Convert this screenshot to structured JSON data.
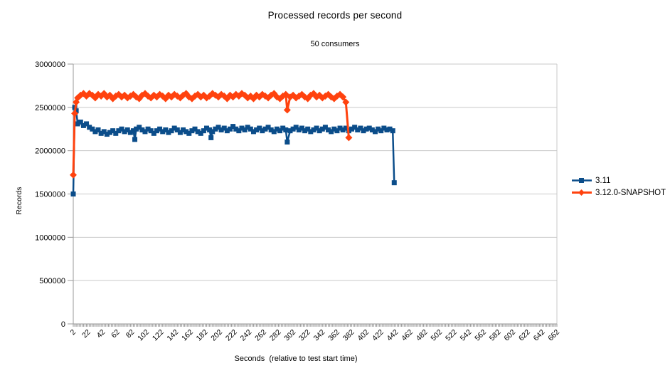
{
  "chart_data": {
    "type": "line",
    "title": "Processed records per second",
    "subtitle": "50 consumers",
    "xlabel": "Seconds  (relative to test start time)",
    "ylabel": "Records",
    "x_axis": {
      "first_label": 2,
      "label_step": 20,
      "last_label": 662,
      "minor_tick_step": 2
    },
    "y_axis": {
      "min": 0,
      "max": 3000000,
      "tick_step": 500000
    },
    "grid": "horizontal",
    "legend_position": "right",
    "colors": {
      "grid": "#c9c9c9",
      "axis": "#9a9a9a",
      "text": "#000000",
      "background": "#ffffff"
    },
    "series": [
      {
        "name": "3.11",
        "color": "#0b4d8a",
        "marker": "square",
        "line_width": 2.5,
        "points": [
          [
            2,
            1500000
          ],
          [
            4,
            2500000
          ],
          [
            6,
            2460000
          ],
          [
            8,
            2310000
          ],
          [
            12,
            2330000
          ],
          [
            16,
            2290000
          ],
          [
            20,
            2310000
          ],
          [
            24,
            2270000
          ],
          [
            28,
            2250000
          ],
          [
            32,
            2220000
          ],
          [
            36,
            2240000
          ],
          [
            40,
            2200000
          ],
          [
            44,
            2220000
          ],
          [
            48,
            2190000
          ],
          [
            52,
            2210000
          ],
          [
            56,
            2230000
          ],
          [
            60,
            2200000
          ],
          [
            64,
            2230000
          ],
          [
            68,
            2250000
          ],
          [
            72,
            2220000
          ],
          [
            76,
            2240000
          ],
          [
            80,
            2210000
          ],
          [
            84,
            2230000
          ],
          [
            86,
            2130000
          ],
          [
            88,
            2250000
          ],
          [
            92,
            2270000
          ],
          [
            96,
            2240000
          ],
          [
            100,
            2220000
          ],
          [
            104,
            2250000
          ],
          [
            108,
            2230000
          ],
          [
            112,
            2200000
          ],
          [
            116,
            2230000
          ],
          [
            120,
            2250000
          ],
          [
            124,
            2220000
          ],
          [
            128,
            2240000
          ],
          [
            132,
            2210000
          ],
          [
            136,
            2230000
          ],
          [
            140,
            2260000
          ],
          [
            144,
            2240000
          ],
          [
            148,
            2210000
          ],
          [
            152,
            2240000
          ],
          [
            156,
            2220000
          ],
          [
            160,
            2200000
          ],
          [
            164,
            2230000
          ],
          [
            168,
            2250000
          ],
          [
            172,
            2220000
          ],
          [
            176,
            2200000
          ],
          [
            180,
            2230000
          ],
          [
            184,
            2260000
          ],
          [
            188,
            2240000
          ],
          [
            190,
            2150000
          ],
          [
            192,
            2220000
          ],
          [
            196,
            2250000
          ],
          [
            200,
            2270000
          ],
          [
            204,
            2240000
          ],
          [
            208,
            2260000
          ],
          [
            212,
            2230000
          ],
          [
            216,
            2250000
          ],
          [
            220,
            2280000
          ],
          [
            224,
            2250000
          ],
          [
            228,
            2230000
          ],
          [
            232,
            2260000
          ],
          [
            236,
            2240000
          ],
          [
            240,
            2270000
          ],
          [
            244,
            2250000
          ],
          [
            248,
            2220000
          ],
          [
            252,
            2240000
          ],
          [
            256,
            2260000
          ],
          [
            260,
            2230000
          ],
          [
            264,
            2250000
          ],
          [
            268,
            2270000
          ],
          [
            272,
            2240000
          ],
          [
            276,
            2220000
          ],
          [
            280,
            2250000
          ],
          [
            284,
            2230000
          ],
          [
            288,
            2260000
          ],
          [
            292,
            2240000
          ],
          [
            294,
            2100000
          ],
          [
            298,
            2230000
          ],
          [
            302,
            2250000
          ],
          [
            306,
            2270000
          ],
          [
            310,
            2240000
          ],
          [
            314,
            2260000
          ],
          [
            318,
            2230000
          ],
          [
            322,
            2250000
          ],
          [
            326,
            2220000
          ],
          [
            330,
            2240000
          ],
          [
            334,
            2260000
          ],
          [
            338,
            2230000
          ],
          [
            342,
            2250000
          ],
          [
            346,
            2270000
          ],
          [
            350,
            2240000
          ],
          [
            354,
            2220000
          ],
          [
            358,
            2250000
          ],
          [
            362,
            2230000
          ],
          [
            366,
            2260000
          ],
          [
            370,
            2240000
          ],
          [
            374,
            2260000
          ],
          [
            378,
            2230000
          ],
          [
            382,
            2250000
          ],
          [
            386,
            2270000
          ],
          [
            390,
            2240000
          ],
          [
            394,
            2260000
          ],
          [
            398,
            2230000
          ],
          [
            402,
            2250000
          ],
          [
            406,
            2260000
          ],
          [
            410,
            2240000
          ],
          [
            414,
            2220000
          ],
          [
            418,
            2250000
          ],
          [
            422,
            2230000
          ],
          [
            426,
            2260000
          ],
          [
            430,
            2240000
          ],
          [
            434,
            2250000
          ],
          [
            438,
            2230000
          ],
          [
            440,
            1630000
          ]
        ]
      },
      {
        "name": "3.12.0-SNAPSHOT",
        "color": "#ff420e",
        "marker": "diamond",
        "line_width": 3,
        "points": [
          [
            2,
            1720000
          ],
          [
            4,
            2430000
          ],
          [
            6,
            2560000
          ],
          [
            8,
            2610000
          ],
          [
            12,
            2640000
          ],
          [
            16,
            2660000
          ],
          [
            20,
            2630000
          ],
          [
            24,
            2660000
          ],
          [
            28,
            2640000
          ],
          [
            32,
            2610000
          ],
          [
            36,
            2650000
          ],
          [
            40,
            2630000
          ],
          [
            44,
            2660000
          ],
          [
            48,
            2620000
          ],
          [
            52,
            2640000
          ],
          [
            56,
            2600000
          ],
          [
            60,
            2630000
          ],
          [
            64,
            2650000
          ],
          [
            68,
            2620000
          ],
          [
            72,
            2640000
          ],
          [
            76,
            2610000
          ],
          [
            80,
            2630000
          ],
          [
            84,
            2650000
          ],
          [
            88,
            2620000
          ],
          [
            92,
            2600000
          ],
          [
            96,
            2640000
          ],
          [
            100,
            2660000
          ],
          [
            104,
            2630000
          ],
          [
            108,
            2610000
          ],
          [
            112,
            2640000
          ],
          [
            116,
            2620000
          ],
          [
            120,
            2650000
          ],
          [
            124,
            2630000
          ],
          [
            128,
            2600000
          ],
          [
            132,
            2640000
          ],
          [
            136,
            2620000
          ],
          [
            140,
            2650000
          ],
          [
            144,
            2630000
          ],
          [
            148,
            2610000
          ],
          [
            152,
            2640000
          ],
          [
            156,
            2660000
          ],
          [
            160,
            2620000
          ],
          [
            164,
            2600000
          ],
          [
            168,
            2630000
          ],
          [
            172,
            2650000
          ],
          [
            176,
            2620000
          ],
          [
            180,
            2640000
          ],
          [
            184,
            2610000
          ],
          [
            188,
            2630000
          ],
          [
            192,
            2660000
          ],
          [
            196,
            2640000
          ],
          [
            200,
            2620000
          ],
          [
            204,
            2650000
          ],
          [
            208,
            2630000
          ],
          [
            212,
            2600000
          ],
          [
            216,
            2640000
          ],
          [
            220,
            2620000
          ],
          [
            224,
            2650000
          ],
          [
            228,
            2630000
          ],
          [
            232,
            2660000
          ],
          [
            236,
            2640000
          ],
          [
            240,
            2610000
          ],
          [
            244,
            2630000
          ],
          [
            248,
            2600000
          ],
          [
            252,
            2640000
          ],
          [
            256,
            2620000
          ],
          [
            260,
            2650000
          ],
          [
            264,
            2630000
          ],
          [
            268,
            2610000
          ],
          [
            272,
            2640000
          ],
          [
            276,
            2660000
          ],
          [
            280,
            2620000
          ],
          [
            284,
            2600000
          ],
          [
            288,
            2630000
          ],
          [
            292,
            2650000
          ],
          [
            294,
            2470000
          ],
          [
            298,
            2620000
          ],
          [
            302,
            2640000
          ],
          [
            306,
            2610000
          ],
          [
            310,
            2630000
          ],
          [
            314,
            2650000
          ],
          [
            318,
            2620000
          ],
          [
            322,
            2600000
          ],
          [
            326,
            2640000
          ],
          [
            330,
            2660000
          ],
          [
            334,
            2620000
          ],
          [
            338,
            2640000
          ],
          [
            342,
            2610000
          ],
          [
            346,
            2630000
          ],
          [
            350,
            2650000
          ],
          [
            354,
            2620000
          ],
          [
            358,
            2600000
          ],
          [
            362,
            2630000
          ],
          [
            366,
            2650000
          ],
          [
            370,
            2620000
          ],
          [
            374,
            2560000
          ],
          [
            378,
            2150000
          ]
        ]
      }
    ]
  }
}
